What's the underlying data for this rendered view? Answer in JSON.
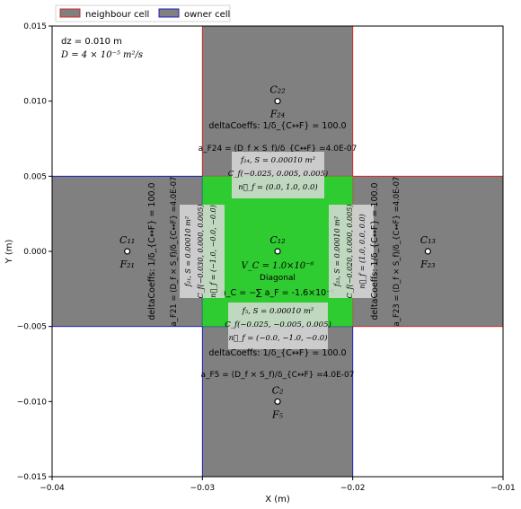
{
  "chart_data": {
    "type": "diagram",
    "xlabel": "X (m)",
    "ylabel": "Y (m)",
    "xlim": [
      -0.04,
      -0.01
    ],
    "ylim": [
      -0.015,
      0.015
    ],
    "xticks": [
      -0.04,
      -0.03,
      -0.02,
      -0.01
    ],
    "xtick_labels": [
      "−0.04",
      "−0.03",
      "−0.02",
      "−0.01"
    ],
    "yticks": [
      -0.015,
      -0.01,
      -0.005,
      0.0,
      0.005,
      0.01,
      0.015
    ],
    "ytick_labels": [
      "−0.015",
      "−0.010",
      "−0.005",
      "0.000",
      "0.005",
      "0.010",
      "0.015"
    ],
    "legend": {
      "placement": "top-left-outside",
      "items": [
        {
          "label": "neighbour cell",
          "face": "#808080",
          "edge": "#d62728"
        },
        {
          "label": "owner cell",
          "face": "#808080",
          "edge": "#1f1fbf"
        }
      ]
    },
    "info": {
      "dz": "dz = 0.010 m",
      "D": "D = 4 × 10⁻⁵ m²/s"
    },
    "colors": {
      "cell": "#808080",
      "owner_fill": "#2ecc30",
      "neighbour_edge": "#d62728",
      "owner_edge": "#1f1fbf",
      "label_box": "#d9d9d9"
    },
    "cells": [
      {
        "name": "C22",
        "x0": -0.03,
        "x1": -0.02,
        "y0": 0.005,
        "y1": 0.015,
        "role": "neighbour"
      },
      {
        "name": "C13",
        "x0": -0.02,
        "x1": -0.01,
        "y0": -0.005,
        "y1": 0.005,
        "role": "neighbour"
      },
      {
        "name": "C11",
        "x0": -0.04,
        "x1": -0.03,
        "y0": -0.005,
        "y1": 0.005,
        "role": "owner"
      },
      {
        "name": "C2",
        "x0": -0.03,
        "x1": -0.02,
        "y0": -0.015,
        "y1": -0.005,
        "role": "owner"
      },
      {
        "name": "C12",
        "x0": -0.03,
        "x1": -0.02,
        "y0": -0.005,
        "y1": 0.005,
        "role": "center"
      }
    ],
    "centers": [
      {
        "label": "C₂₂",
        "x": -0.025,
        "y": 0.01,
        "face": "F₂₄",
        "face_color": "#e00000"
      },
      {
        "label": "C₁₁",
        "x": -0.035,
        "y": 0.0,
        "face": "F₂₁",
        "face_color": "#0000e0"
      },
      {
        "label": "C₁₂",
        "x": -0.025,
        "y": 0.0,
        "face": "",
        "face_color": "#000000"
      },
      {
        "label": "C₁₃",
        "x": -0.015,
        "y": 0.0,
        "face": "F₂₃",
        "face_color": "#e00000"
      },
      {
        "label": "C₂",
        "x": -0.025,
        "y": -0.01,
        "face": "F₅",
        "face_color": "#0000e0"
      }
    ],
    "center_cell": {
      "vc": "V_C = 1.0×10⁻⁶",
      "diag": "Diagonal",
      "ac": "a_C = −∑ a_F = -1.6×10⁻⁶"
    },
    "faces": [
      {
        "id": "top",
        "dc": "deltaCoeffs: 1/δ_{C↔F} = 100.0",
        "a": "a_F24 = (D_f × S_f)/δ_{C↔F} =4.0E-07",
        "box": [
          "f₂₄, S = 0.00010 m²",
          "C_f(−0.025, 0.005, 0.005)",
          "n⃗_f = (0.0, 1.0, 0.0)"
        ]
      },
      {
        "id": "bottom",
        "dc": "deltaCoeffs: 1/δ_{C↔F} = 100.0",
        "a": "a_F5 = (D_f × S_f)/δ_{C↔F} =4.0E-07",
        "box": [
          "f₅, S = 0.00010 m²",
          "C_f(−0.025, −0.005, 0.005)",
          "n⃗_f = (−0.0, −1.0, −0.0)"
        ]
      },
      {
        "id": "left",
        "dc": "deltaCoeffs: 1/δ_{C↔F} = 100.0",
        "a": "a_F21 = (D_f × S_f)/δ_{C↔F} =4.0E-07",
        "box": [
          "f₂₁, S = 0.00010 m²",
          "C_f(−0.030, 0.000, 0.005)",
          "n⃗_f = (−1.0, −0.0, −0.0)"
        ]
      },
      {
        "id": "right",
        "dc": "deltaCoeffs: 1/δ_{C↔F} = 100.0",
        "a": "a_F23 = (D_f × S_f)/δ_{C↔F} =4.0E-07",
        "box": [
          "f₂₃, S = 0.00010 m²",
          "C_f(−0.020, 0.000, 0.005)",
          "n⃗_f = (1.0, 0.0, 0.0)"
        ]
      }
    ]
  }
}
